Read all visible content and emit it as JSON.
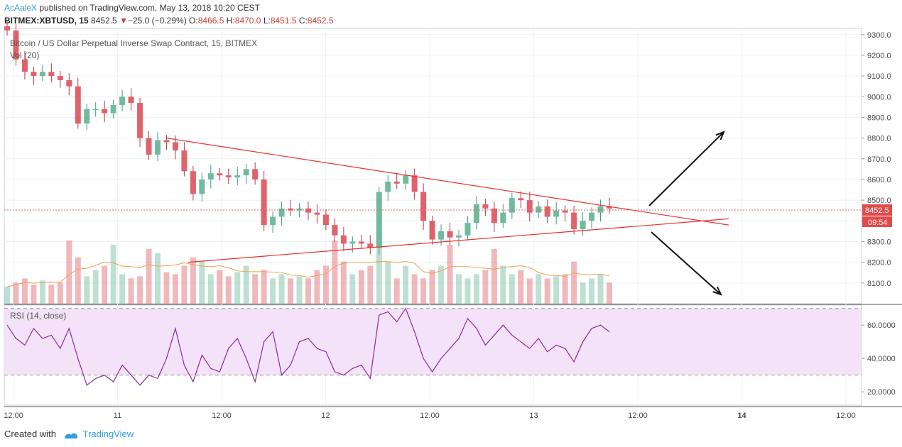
{
  "header": {
    "author": "AcAaleX",
    "published_text": " published on TradingView.com, May 13, 2018 10:20 CEST",
    "symbol": "BITMEX:XBTUSD, 15",
    "last": "8452.5",
    "change_arrow": "▼",
    "change": "−25.0 (−0.29%)",
    "o_label": "O:",
    "o_val": "8466.5",
    "h_label": "H:",
    "h_val": "8470.0",
    "l_label": "L:",
    "l_val": "8451.5",
    "c_label": "C:",
    "c_val": "8452.5"
  },
  "chart": {
    "series_title": "Bitcoin / US Dollar Perpetual Inverse Swap Contract, 15, BITMEX",
    "vol_label": "Vol (20)",
    "rsi_label": "RSI (14, close)",
    "price_badge": "8452.5",
    "countdown_badge": "09:54"
  },
  "footer": {
    "created_with": "Created with",
    "brand": "TradingView"
  },
  "colors": {
    "up": "#6fbb9c",
    "down": "#e0626a",
    "trendline": "#e8322e",
    "rsi_line": "#8e2a9e",
    "rsi_band": "#f3e2f8",
    "arrow": "#111111"
  },
  "chart_data": [
    {
      "type": "candlestick",
      "x_ticks": [
        "12:00",
        "11",
        "12:00",
        "12",
        "12:00",
        "13",
        "12:00",
        "14",
        "12:00"
      ],
      "y_ticks": [
        8100.0,
        8200.0,
        8300.0,
        8400.0,
        8500.0,
        8600.0,
        8700.0,
        8800.0,
        8900.0,
        9000.0,
        9100.0,
        9200.0,
        9300.0
      ],
      "ylim": [
        8000,
        9330
      ],
      "last_price": 8452.5,
      "price_path": [
        9320,
        9180,
        9120,
        9100,
        9120,
        9100,
        9080,
        9050,
        8870,
        8940,
        8940,
        8920,
        8960,
        9000,
        8970,
        8800,
        8720,
        8790,
        8780,
        8740,
        8640,
        8530,
        8600,
        8630,
        8620,
        8610,
        8620,
        8650,
        8600,
        8380,
        8420,
        8460,
        8450,
        8460,
        8440,
        8430,
        8380,
        8330,
        8290,
        8300,
        8290,
        8270,
        8540,
        8590,
        8580,
        8620,
        8540,
        8400,
        8310,
        8350,
        8320,
        8330,
        8390,
        8480,
        8460,
        8390,
        8440,
        8510,
        8500,
        8440,
        8470,
        8420,
        8450,
        8440,
        8360,
        8400,
        8440,
        8470,
        8460
      ],
      "trendlines": [
        {
          "from": [
            0.172,
            8800
          ],
          "to": [
            0.68,
            8380
          ]
        },
        {
          "from": [
            0.195,
            8200
          ],
          "to": [
            0.68,
            8410
          ]
        }
      ],
      "projection_arrows": [
        "up",
        "down"
      ]
    },
    {
      "type": "volume",
      "label": "Vol (20)",
      "values": [
        8,
        10,
        12,
        9,
        11,
        9,
        10,
        30,
        22,
        13,
        16,
        18,
        28,
        14,
        12,
        13,
        26,
        24,
        15,
        14,
        18,
        22,
        20,
        14,
        16,
        13,
        15,
        18,
        14,
        16,
        12,
        14,
        12,
        13,
        12,
        16,
        18,
        30,
        20,
        14,
        16,
        18,
        32,
        20,
        12,
        18,
        14,
        12,
        16,
        18,
        28,
        14,
        12,
        14,
        16,
        26,
        18,
        14,
        16,
        12,
        14,
        12,
        13,
        14,
        20,
        10,
        12,
        14,
        10
      ]
    },
    {
      "type": "line",
      "label": "RSI (14, close)",
      "y_ticks": [
        20.0,
        40.0,
        60.0
      ],
      "ylim": [
        12,
        72
      ],
      "bands": [
        30,
        70
      ],
      "values": [
        60,
        52,
        48,
        58,
        52,
        54,
        46,
        58,
        40,
        24,
        28,
        30,
        26,
        36,
        30,
        24,
        30,
        28,
        40,
        58,
        36,
        26,
        42,
        34,
        32,
        46,
        52,
        40,
        26,
        50,
        56,
        30,
        36,
        50,
        52,
        46,
        44,
        32,
        30,
        34,
        36,
        28,
        66,
        68,
        62,
        70,
        56,
        40,
        32,
        40,
        46,
        52,
        64,
        58,
        48,
        54,
        60,
        54,
        50,
        46,
        52,
        44,
        48,
        46,
        38,
        50,
        58,
        60,
        56
      ]
    }
  ]
}
